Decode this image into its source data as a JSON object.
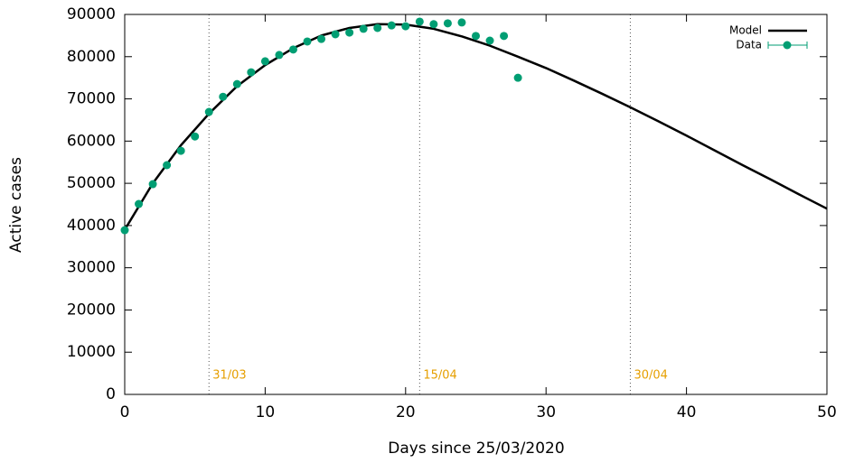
{
  "chart_data": {
    "type": "line",
    "xlabel": "Days since 25/03/2020",
    "ylabel": "Active cases",
    "xlim": [
      0,
      50
    ],
    "xticks": [
      0,
      10,
      20,
      30,
      40,
      50
    ],
    "ylim": [
      0,
      90000
    ],
    "yticks": [
      0,
      10000,
      20000,
      30000,
      40000,
      50000,
      60000,
      70000,
      80000,
      90000
    ],
    "legend": "top-right",
    "series": [
      {
        "name": "Model",
        "color": "#000000",
        "style": "line",
        "x": [
          0,
          2,
          4,
          6,
          8,
          10,
          12,
          14,
          16,
          18,
          20,
          22,
          24,
          26,
          28,
          30,
          32,
          34,
          36,
          38,
          40,
          42,
          44,
          46,
          48,
          50
        ],
        "values": [
          39000,
          50000,
          59000,
          66500,
          73000,
          78000,
          82000,
          85000,
          86800,
          87700,
          87600,
          86600,
          84800,
          82600,
          80000,
          77300,
          74300,
          71200,
          68000,
          64700,
          61300,
          57800,
          54300,
          50900,
          47400,
          44000
        ]
      },
      {
        "name": "Data",
        "color": "#009e73",
        "style": "points",
        "x": [
          0,
          1,
          2,
          3,
          4,
          5,
          6,
          7,
          8,
          9,
          10,
          11,
          12,
          13,
          14,
          15,
          16,
          17,
          18,
          19,
          20,
          21,
          22,
          23,
          24,
          25,
          26,
          27,
          28
        ],
        "values": [
          38900,
          45100,
          49800,
          54300,
          57700,
          61100,
          66900,
          70500,
          73500,
          76300,
          78900,
          80400,
          81700,
          83600,
          84200,
          85300,
          85700,
          86600,
          86800,
          87400,
          87200,
          88300,
          87700,
          87900,
          88100,
          84900,
          83800,
          84900,
          75000
        ]
      }
    ],
    "annotations": [
      {
        "x": 6,
        "label": "31/03"
      },
      {
        "x": 21,
        "label": "15/04"
      },
      {
        "x": 36,
        "label": "30/04"
      }
    ]
  }
}
